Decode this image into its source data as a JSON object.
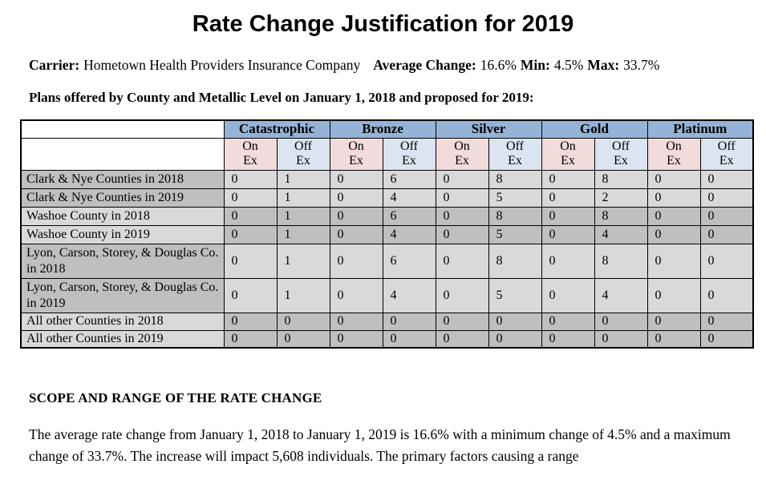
{
  "title": "Rate Change Justification for 2019",
  "meta": {
    "carrier_label": "Carrier:",
    "carrier_value": "Hometown Health Providers Insurance Company",
    "avg_label": "Average Change:",
    "avg_value": "16.6%",
    "min_label": "Min:",
    "min_value": "4.5%",
    "max_label": "Max:",
    "max_value": "33.7%"
  },
  "plans_caption": "Plans offered by County and Metallic Level on January 1, 2018 and proposed for 2019:",
  "colors": {
    "metal_header_blue": "#95B3D7",
    "on_ex_pink": "#F2DBDB",
    "off_ex_blue": "#DBE5F1",
    "row_dark_gray": "#BFBFBF",
    "row_light_gray": "#D9D9D9"
  },
  "table": {
    "metal_headers": [
      "Catastrophic",
      "Bronze",
      "Silver",
      "Gold",
      "Platinum"
    ],
    "sub_on": {
      "l1": "On",
      "l2": "Ex"
    },
    "sub_off": {
      "l1": "Off",
      "l2": "Ex"
    },
    "rows": [
      {
        "label": "Clark & Nye Counties in 2018",
        "values": [
          0,
          1,
          0,
          6,
          0,
          8,
          0,
          8,
          0,
          0
        ]
      },
      {
        "label": "Clark & Nye Counties in 2019",
        "values": [
          0,
          1,
          0,
          4,
          0,
          5,
          0,
          2,
          0,
          0
        ]
      },
      {
        "label": "Washoe County in 2018",
        "values": [
          0,
          1,
          0,
          6,
          0,
          8,
          0,
          8,
          0,
          0
        ]
      },
      {
        "label": "Washoe County in 2019",
        "values": [
          0,
          1,
          0,
          4,
          0,
          5,
          0,
          4,
          0,
          0
        ]
      },
      {
        "label": "Lyon, Carson, Storey, & Douglas Co. in 2018",
        "values": [
          0,
          1,
          0,
          6,
          0,
          8,
          0,
          8,
          0,
          0
        ]
      },
      {
        "label": "Lyon, Carson, Storey, & Douglas Co. in 2019",
        "values": [
          0,
          1,
          0,
          4,
          0,
          5,
          0,
          4,
          0,
          0
        ]
      },
      {
        "label": "All other Counties in 2018",
        "values": [
          0,
          0,
          0,
          0,
          0,
          0,
          0,
          0,
          0,
          0
        ]
      },
      {
        "label": "All other Counties in 2019",
        "values": [
          0,
          0,
          0,
          0,
          0,
          0,
          0,
          0,
          0,
          0
        ]
      }
    ]
  },
  "scope": {
    "heading": "SCOPE AND RANGE OF THE RATE CHANGE",
    "paragraph": "The average rate change from January 1, 2018 to January 1, 2019 is 16.6% with a minimum change of 4.5% and a maximum change of 33.7%. The increase will impact 5,608 individuals.  The primary factors causing a range"
  }
}
